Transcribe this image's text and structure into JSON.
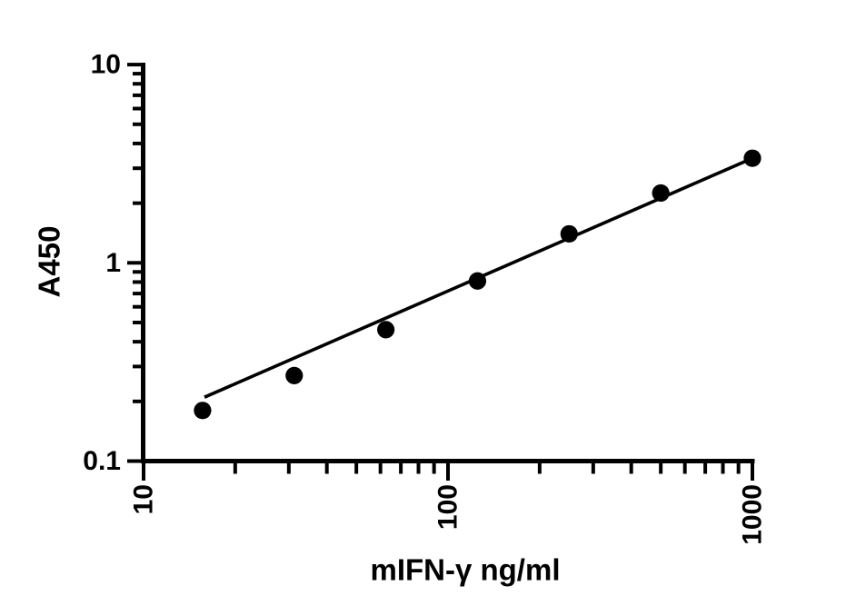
{
  "figure": {
    "background_color": "#ffffff",
    "ink_color": "#000000"
  },
  "chart_data": {
    "type": "scatter",
    "title": "",
    "xlabel": "mIFN-γ ng/ml",
    "ylabel": "A450",
    "x_scale": "log",
    "y_scale": "log",
    "xlim": [
      10,
      1000
    ],
    "ylim": [
      0.1,
      10
    ],
    "grid": false,
    "legend": null,
    "x_ticks": [
      {
        "v": 10,
        "label": "10"
      },
      {
        "v": 100,
        "label": "100"
      },
      {
        "v": 1000,
        "label": "1000"
      }
    ],
    "y_ticks": [
      {
        "v": 10,
        "label": "10"
      },
      {
        "v": 1,
        "label": "1"
      },
      {
        "v": 0.1,
        "label": "0.1"
      }
    ],
    "series": [
      {
        "name": "standard-curve-points",
        "marker": "filled-circle",
        "color": "#000000",
        "x": [
          15.625,
          31.25,
          62.5,
          125,
          250,
          500,
          1000
        ],
        "y": [
          0.18,
          0.27,
          0.46,
          0.81,
          1.4,
          2.25,
          3.37
        ]
      }
    ],
    "trendline": {
      "name": "linear-fit-line",
      "color": "#000000",
      "x1": 15.85,
      "y1": 0.21,
      "x2": 1000,
      "y2": 3.37
    }
  }
}
